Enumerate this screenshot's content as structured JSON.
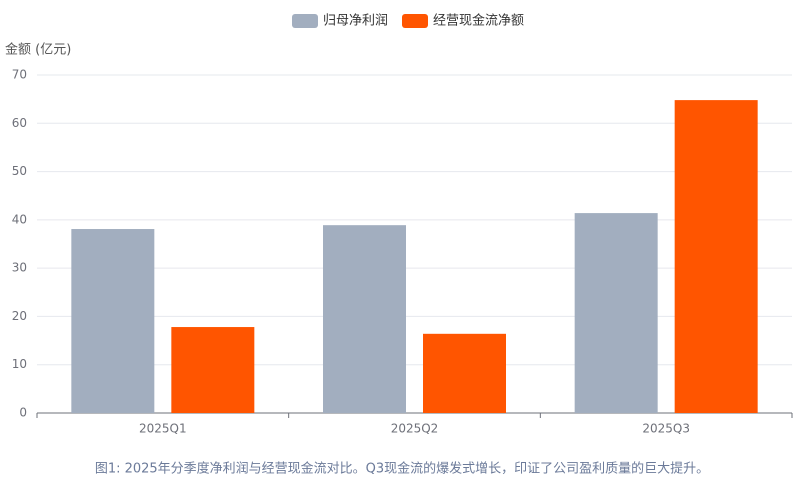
{
  "chart_data": {
    "type": "bar",
    "y_label": "金额 (亿元)",
    "categories": [
      "2025Q1",
      "2025Q2",
      "2025Q3"
    ],
    "series": [
      {
        "name": "归母净利润",
        "color": "#a2aebf",
        "values": [
          38.1,
          38.9,
          41.4
        ]
      },
      {
        "name": "经营现金流净额",
        "color": "#ff5500",
        "values": [
          17.8,
          16.4,
          64.8
        ]
      }
    ],
    "ylim": [
      0,
      70
    ],
    "yticks": [
      0,
      10,
      20,
      30,
      40,
      50,
      60,
      70
    ],
    "grid": true,
    "legend": "top",
    "caption": "图1: 2025年分季度净利润与经营现金流对比。Q3现金流的爆发式增长，印证了公司盈利质量的巨大提升。"
  }
}
